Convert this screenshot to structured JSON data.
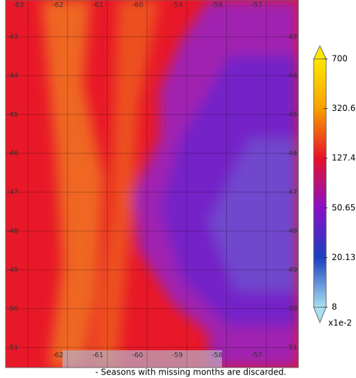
{
  "longitude_labels_top": [
    "-63",
    "-62",
    "-61",
    "-60",
    "-59",
    "-58",
    "-57"
  ],
  "longitude_labels_bottom": [
    "-62",
    "-61",
    "-60",
    "-59",
    "-58",
    "-57"
  ],
  "latitude_labels_left": [
    "-43",
    "-44",
    "-45",
    "-46",
    "-47",
    "-48",
    "-49",
    "-50",
    "-51"
  ],
  "latitude_labels_right": [
    "-43",
    "-44",
    "-45",
    "-46",
    "-47",
    "-48",
    "-49",
    "-50",
    "-51"
  ],
  "colorbar": {
    "labels": [
      "700",
      "320.6",
      "127.4",
      "50.65",
      "20.13",
      "8"
    ],
    "unit": "x1e-2"
  },
  "footnote": "- Seasons with missing months are discarded."
}
